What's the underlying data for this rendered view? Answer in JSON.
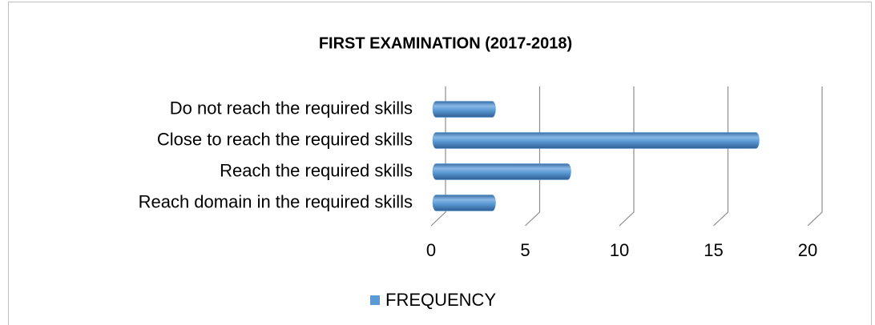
{
  "chart_data": {
    "type": "bar",
    "orientation": "horizontal",
    "title": "FIRST EXAMINATION (2017-2018)",
    "categories": [
      "Do not reach the required skills",
      "Close to reach the required skills",
      "Reach the required skills",
      "Reach domain in the required skills"
    ],
    "series": [
      {
        "name": "FREQUENCY",
        "color": "#5b9bd5",
        "values": [
          3,
          17,
          7,
          3
        ]
      }
    ],
    "xlim": [
      0,
      20
    ],
    "xticks": [
      0,
      5,
      10,
      15,
      20
    ],
    "grid": true,
    "legend": "bottom"
  }
}
